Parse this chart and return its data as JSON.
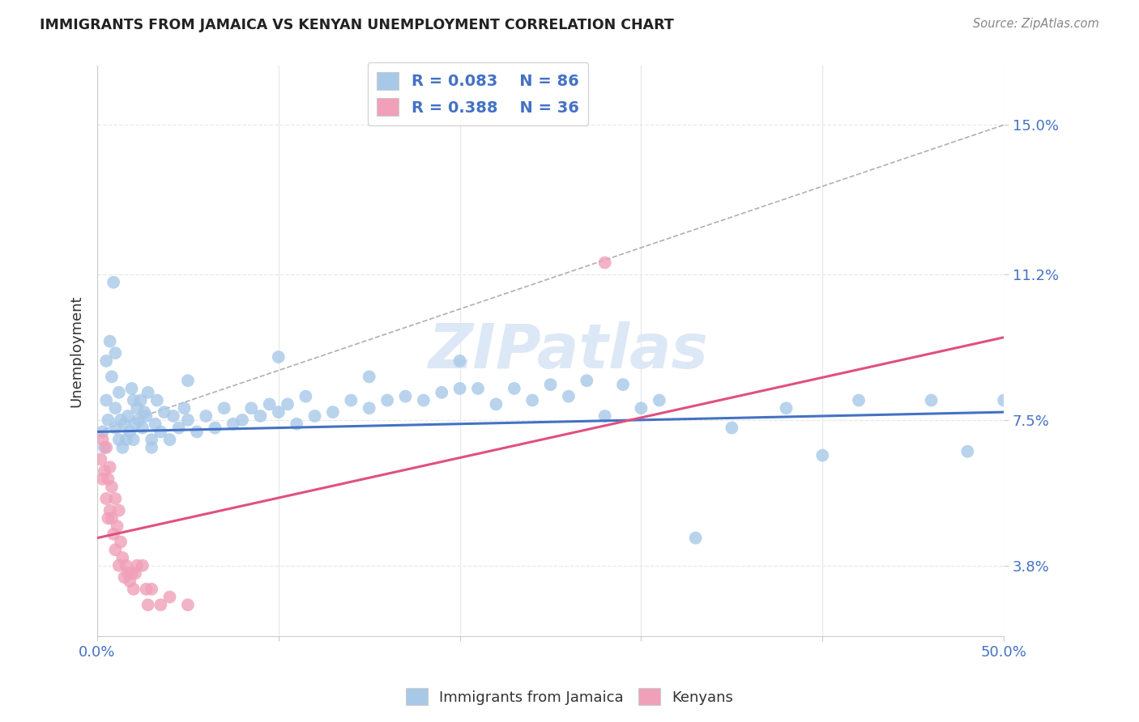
{
  "title": "IMMIGRANTS FROM JAMAICA VS KENYAN UNEMPLOYMENT CORRELATION CHART",
  "source": "Source: ZipAtlas.com",
  "ylabel": "Unemployment",
  "xlim": [
    0.0,
    0.5
  ],
  "ylim": [
    0.02,
    0.165
  ],
  "yticks": [
    0.038,
    0.075,
    0.112,
    0.15
  ],
  "ytick_labels": [
    "3.8%",
    "7.5%",
    "11.2%",
    "15.0%"
  ],
  "xticks": [
    0.0,
    0.1,
    0.2,
    0.3,
    0.4,
    0.5
  ],
  "xtick_labels": [
    "0.0%",
    "",
    "",
    "",
    "",
    "50.0%"
  ],
  "legend_R1": "0.083",
  "legend_N1": "86",
  "legend_R2": "0.388",
  "legend_N2": "36",
  "color_blue": "#a8c8e8",
  "color_pink": "#f0a0b8",
  "line_blue": "#4472c4",
  "line_pink": "#e05080",
  "line_dashed_color": "#b0b0b0",
  "watermark": "ZIPatlas",
  "watermark_color": "#dce8f5",
  "title_color": "#222222",
  "right_tick_color": "#4472c4",
  "background_color": "#ffffff",
  "grid_color": "#e8e8e8",
  "grid_style": "--",
  "blue_scatter_x": [
    0.003,
    0.004,
    0.005,
    0.005,
    0.006,
    0.007,
    0.008,
    0.009,
    0.01,
    0.01,
    0.01,
    0.012,
    0.012,
    0.013,
    0.014,
    0.015,
    0.016,
    0.017,
    0.018,
    0.019,
    0.02,
    0.02,
    0.021,
    0.022,
    0.023,
    0.024,
    0.025,
    0.026,
    0.027,
    0.028,
    0.03,
    0.032,
    0.033,
    0.035,
    0.037,
    0.04,
    0.042,
    0.045,
    0.048,
    0.05,
    0.055,
    0.06,
    0.065,
    0.07,
    0.075,
    0.08,
    0.085,
    0.09,
    0.095,
    0.1,
    0.105,
    0.11,
    0.115,
    0.12,
    0.13,
    0.14,
    0.15,
    0.16,
    0.17,
    0.18,
    0.19,
    0.2,
    0.21,
    0.22,
    0.23,
    0.24,
    0.25,
    0.26,
    0.27,
    0.28,
    0.29,
    0.3,
    0.31,
    0.33,
    0.35,
    0.38,
    0.4,
    0.42,
    0.46,
    0.48,
    0.5,
    0.2,
    0.15,
    0.1,
    0.05,
    0.03
  ],
  "blue_scatter_y": [
    0.072,
    0.068,
    0.08,
    0.09,
    0.075,
    0.095,
    0.086,
    0.11,
    0.073,
    0.078,
    0.092,
    0.07,
    0.082,
    0.075,
    0.068,
    0.074,
    0.07,
    0.076,
    0.072,
    0.083,
    0.07,
    0.08,
    0.074,
    0.078,
    0.075,
    0.08,
    0.073,
    0.077,
    0.076,
    0.082,
    0.068,
    0.074,
    0.08,
    0.072,
    0.077,
    0.07,
    0.076,
    0.073,
    0.078,
    0.075,
    0.072,
    0.076,
    0.073,
    0.078,
    0.074,
    0.075,
    0.078,
    0.076,
    0.079,
    0.077,
    0.079,
    0.074,
    0.081,
    0.076,
    0.077,
    0.08,
    0.078,
    0.08,
    0.081,
    0.08,
    0.082,
    0.083,
    0.083,
    0.079,
    0.083,
    0.08,
    0.084,
    0.081,
    0.085,
    0.076,
    0.084,
    0.078,
    0.08,
    0.045,
    0.073,
    0.078,
    0.066,
    0.08,
    0.08,
    0.067,
    0.08,
    0.09,
    0.086,
    0.091,
    0.085,
    0.07
  ],
  "pink_scatter_x": [
    0.002,
    0.003,
    0.003,
    0.004,
    0.005,
    0.005,
    0.006,
    0.006,
    0.007,
    0.007,
    0.008,
    0.008,
    0.009,
    0.01,
    0.01,
    0.011,
    0.012,
    0.012,
    0.013,
    0.014,
    0.015,
    0.016,
    0.017,
    0.018,
    0.019,
    0.02,
    0.021,
    0.022,
    0.025,
    0.027,
    0.028,
    0.03,
    0.035,
    0.04,
    0.05,
    0.28
  ],
  "pink_scatter_y": [
    0.065,
    0.06,
    0.07,
    0.062,
    0.055,
    0.068,
    0.05,
    0.06,
    0.052,
    0.063,
    0.05,
    0.058,
    0.046,
    0.042,
    0.055,
    0.048,
    0.038,
    0.052,
    0.044,
    0.04,
    0.035,
    0.038,
    0.036,
    0.034,
    0.036,
    0.032,
    0.036,
    0.038,
    0.038,
    0.032,
    0.028,
    0.032,
    0.028,
    0.03,
    0.028,
    0.115
  ],
  "blue_trendline_x": [
    0.0,
    0.5
  ],
  "blue_trendline_y": [
    0.072,
    0.077
  ],
  "pink_trendline_x": [
    0.0,
    0.5
  ],
  "pink_trendline_y": [
    0.045,
    0.096
  ],
  "dashed_trendline_x": [
    0.0,
    0.5
  ],
  "dashed_trendline_y": [
    0.072,
    0.15
  ]
}
